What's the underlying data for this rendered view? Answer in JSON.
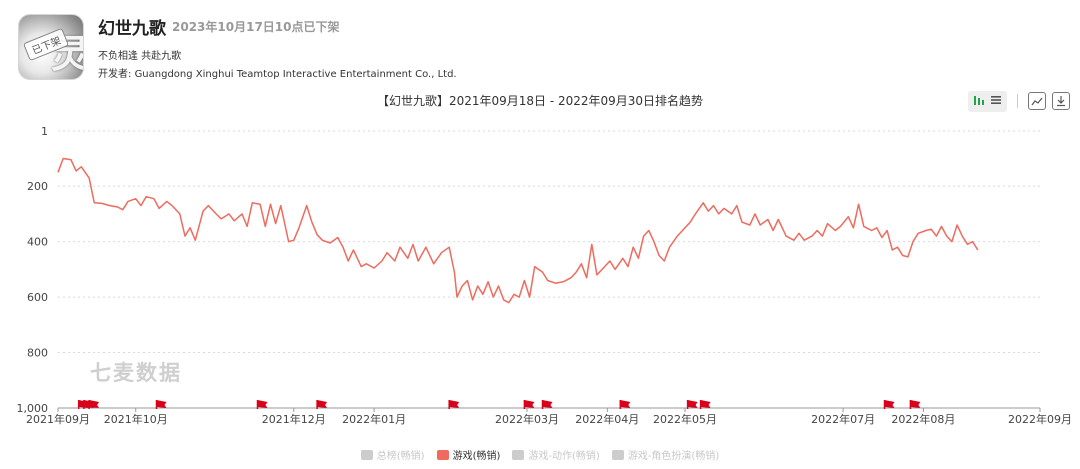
{
  "app": {
    "name": "幻世九歌",
    "delist_note": "2023年10月17日10点已下架",
    "subtitle": "不负相逢 共赴九歌",
    "developer_label": "开发者: ",
    "developer_name": "Guangdong Xinghui Teamtop Interactive Entertainment Co., Ltd.",
    "icon_stamp": "已下架",
    "icon_glyph": "灵"
  },
  "toolbar": {
    "icons": [
      "bar-chart-icon",
      "list-icon",
      "image-icon",
      "download-icon"
    ]
  },
  "watermark": "七麦数据",
  "colors": {
    "series": "#ee6b5e",
    "flag": "#d9001b",
    "inactive": "#cccccc"
  },
  "chart_data": {
    "type": "line",
    "title": "【幻世九歌】2021年09月18日 - 2022年09月30日排名趋势",
    "xlabel": "",
    "ylabel": "",
    "y_inverted": true,
    "ylim": [
      1,
      1000
    ],
    "y_ticks": [
      1,
      200,
      400,
      600,
      800,
      1000
    ],
    "y_tick_labels": [
      "1",
      "200",
      "400",
      "600",
      "800",
      "1,000"
    ],
    "x_range": [
      "2021-09-01",
      "2022-09-15"
    ],
    "x_ticks": [
      {
        "date": "2021-09-01",
        "label": "2021年09月"
      },
      {
        "date": "2021-10-01",
        "label": "2021年10月"
      },
      {
        "date": "2021-12-01",
        "label": "2021年12月"
      },
      {
        "date": "2022-01-01",
        "label": "2022年01月"
      },
      {
        "date": "2022-03-01",
        "label": "2022年03月"
      },
      {
        "date": "2022-04-01",
        "label": "2022年04月"
      },
      {
        "date": "2022-05-01",
        "label": "2022年05月"
      },
      {
        "date": "2022-07-01",
        "label": "2022年07月"
      },
      {
        "date": "2022-08-01",
        "label": "2022年08月"
      },
      {
        "date": "2022-09-15",
        "label": "2022年09月"
      }
    ],
    "grid": true,
    "legend_position": "bottom",
    "legend": [
      {
        "name": "总榜(畅销)",
        "active": false
      },
      {
        "name": "游戏(畅销)",
        "active": true
      },
      {
        "name": "游戏-动作(畅销)",
        "active": false
      },
      {
        "name": "游戏-角色扮演(畅销)",
        "active": false
      }
    ],
    "series": [
      {
        "name": "游戏(畅销)",
        "points": [
          [
            "2021-09-01",
            150
          ],
          [
            "2021-09-03",
            100
          ],
          [
            "2021-09-06",
            105
          ],
          [
            "2021-09-08",
            145
          ],
          [
            "2021-09-10",
            130
          ],
          [
            "2021-09-13",
            170
          ],
          [
            "2021-09-15",
            260
          ],
          [
            "2021-09-18",
            262
          ],
          [
            "2021-09-21",
            270
          ],
          [
            "2021-09-24",
            275
          ],
          [
            "2021-09-26",
            285
          ],
          [
            "2021-09-28",
            255
          ],
          [
            "2021-10-01",
            245
          ],
          [
            "2021-10-03",
            270
          ],
          [
            "2021-10-05",
            238
          ],
          [
            "2021-10-08",
            245
          ],
          [
            "2021-10-10",
            280
          ],
          [
            "2021-10-13",
            255
          ],
          [
            "2021-10-15",
            270
          ],
          [
            "2021-10-18",
            300
          ],
          [
            "2021-10-20",
            380
          ],
          [
            "2021-10-22",
            350
          ],
          [
            "2021-10-24",
            395
          ],
          [
            "2021-10-27",
            290
          ],
          [
            "2021-10-29",
            270
          ],
          [
            "2021-11-01",
            300
          ],
          [
            "2021-11-03",
            318
          ],
          [
            "2021-11-06",
            300
          ],
          [
            "2021-11-08",
            325
          ],
          [
            "2021-11-11",
            300
          ],
          [
            "2021-11-13",
            345
          ],
          [
            "2021-11-15",
            260
          ],
          [
            "2021-11-18",
            265
          ],
          [
            "2021-11-20",
            345
          ],
          [
            "2021-11-22",
            265
          ],
          [
            "2021-11-24",
            335
          ],
          [
            "2021-11-26",
            270
          ],
          [
            "2021-11-29",
            400
          ],
          [
            "2021-12-01",
            395
          ],
          [
            "2021-12-03",
            350
          ],
          [
            "2021-12-06",
            270
          ],
          [
            "2021-12-08",
            330
          ],
          [
            "2021-12-10",
            375
          ],
          [
            "2021-12-12",
            395
          ],
          [
            "2021-12-15",
            405
          ],
          [
            "2021-12-18",
            385
          ],
          [
            "2021-12-20",
            420
          ],
          [
            "2021-12-22",
            470
          ],
          [
            "2021-12-24",
            430
          ],
          [
            "2021-12-27",
            490
          ],
          [
            "2021-12-29",
            480
          ],
          [
            "2022-01-01",
            495
          ],
          [
            "2022-01-04",
            470
          ],
          [
            "2022-01-06",
            440
          ],
          [
            "2022-01-09",
            470
          ],
          [
            "2022-01-11",
            420
          ],
          [
            "2022-01-14",
            460
          ],
          [
            "2022-01-16",
            410
          ],
          [
            "2022-01-18",
            470
          ],
          [
            "2022-01-21",
            420
          ],
          [
            "2022-01-24",
            480
          ],
          [
            "2022-01-27",
            440
          ],
          [
            "2022-01-30",
            420
          ],
          [
            "2022-02-01",
            510
          ],
          [
            "2022-02-02",
            600
          ],
          [
            "2022-02-04",
            560
          ],
          [
            "2022-02-06",
            540
          ],
          [
            "2022-02-08",
            610
          ],
          [
            "2022-02-10",
            560
          ],
          [
            "2022-02-12",
            590
          ],
          [
            "2022-02-14",
            545
          ],
          [
            "2022-02-16",
            600
          ],
          [
            "2022-02-18",
            560
          ],
          [
            "2022-02-20",
            610
          ],
          [
            "2022-02-22",
            620
          ],
          [
            "2022-02-24",
            590
          ],
          [
            "2022-02-26",
            600
          ],
          [
            "2022-02-28",
            540
          ],
          [
            "2022-03-02",
            600
          ],
          [
            "2022-03-04",
            490
          ],
          [
            "2022-03-07",
            510
          ],
          [
            "2022-03-09",
            540
          ],
          [
            "2022-03-12",
            550
          ],
          [
            "2022-03-15",
            545
          ],
          [
            "2022-03-18",
            530
          ],
          [
            "2022-03-20",
            510
          ],
          [
            "2022-03-22",
            480
          ],
          [
            "2022-03-24",
            530
          ],
          [
            "2022-03-26",
            410
          ],
          [
            "2022-03-28",
            520
          ],
          [
            "2022-03-30",
            500
          ],
          [
            "2022-04-02",
            470
          ],
          [
            "2022-04-04",
            500
          ],
          [
            "2022-04-07",
            460
          ],
          [
            "2022-04-09",
            490
          ],
          [
            "2022-04-11",
            420
          ],
          [
            "2022-04-13",
            460
          ],
          [
            "2022-04-15",
            380
          ],
          [
            "2022-04-17",
            360
          ],
          [
            "2022-04-19",
            400
          ],
          [
            "2022-04-21",
            450
          ],
          [
            "2022-04-23",
            470
          ],
          [
            "2022-04-25",
            420
          ],
          [
            "2022-04-28",
            380
          ],
          [
            "2022-05-01",
            350
          ],
          [
            "2022-05-03",
            330
          ],
          [
            "2022-05-05",
            300
          ],
          [
            "2022-05-08",
            260
          ],
          [
            "2022-05-10",
            290
          ],
          [
            "2022-05-12",
            270
          ],
          [
            "2022-05-14",
            300
          ],
          [
            "2022-05-16",
            280
          ],
          [
            "2022-05-19",
            300
          ],
          [
            "2022-05-21",
            270
          ],
          [
            "2022-05-23",
            330
          ],
          [
            "2022-05-26",
            340
          ],
          [
            "2022-05-28",
            300
          ],
          [
            "2022-05-30",
            340
          ],
          [
            "2022-06-02",
            320
          ],
          [
            "2022-06-04",
            360
          ],
          [
            "2022-06-06",
            320
          ],
          [
            "2022-06-09",
            380
          ],
          [
            "2022-06-12",
            395
          ],
          [
            "2022-06-14",
            370
          ],
          [
            "2022-06-16",
            395
          ],
          [
            "2022-06-19",
            380
          ],
          [
            "2022-06-21",
            360
          ],
          [
            "2022-06-23",
            380
          ],
          [
            "2022-06-25",
            335
          ],
          [
            "2022-06-28",
            360
          ],
          [
            "2022-06-30",
            345
          ],
          [
            "2022-07-03",
            310
          ],
          [
            "2022-07-05",
            350
          ],
          [
            "2022-07-07",
            265
          ],
          [
            "2022-07-09",
            345
          ],
          [
            "2022-07-12",
            360
          ],
          [
            "2022-07-14",
            350
          ],
          [
            "2022-07-16",
            385
          ],
          [
            "2022-07-18",
            360
          ],
          [
            "2022-07-20",
            430
          ],
          [
            "2022-07-22",
            420
          ],
          [
            "2022-07-24",
            450
          ],
          [
            "2022-07-26",
            455
          ],
          [
            "2022-07-28",
            400
          ],
          [
            "2022-07-30",
            370
          ],
          [
            "2022-08-02",
            360
          ],
          [
            "2022-08-04",
            355
          ],
          [
            "2022-08-06",
            380
          ],
          [
            "2022-08-08",
            345
          ],
          [
            "2022-08-10",
            380
          ],
          [
            "2022-08-12",
            400
          ],
          [
            "2022-08-14",
            340
          ],
          [
            "2022-08-16",
            380
          ],
          [
            "2022-08-18",
            410
          ],
          [
            "2022-08-20",
            400
          ],
          [
            "2022-08-22",
            430
          ]
        ]
      }
    ],
    "event_flags": [
      "2021-09-09",
      "2021-09-11",
      "2021-09-13",
      "2021-10-09",
      "2021-11-17",
      "2021-12-10",
      "2022-01-30",
      "2022-02-28",
      "2022-03-07",
      "2022-04-06",
      "2022-05-02",
      "2022-05-07",
      "2022-07-17",
      "2022-07-27"
    ]
  }
}
